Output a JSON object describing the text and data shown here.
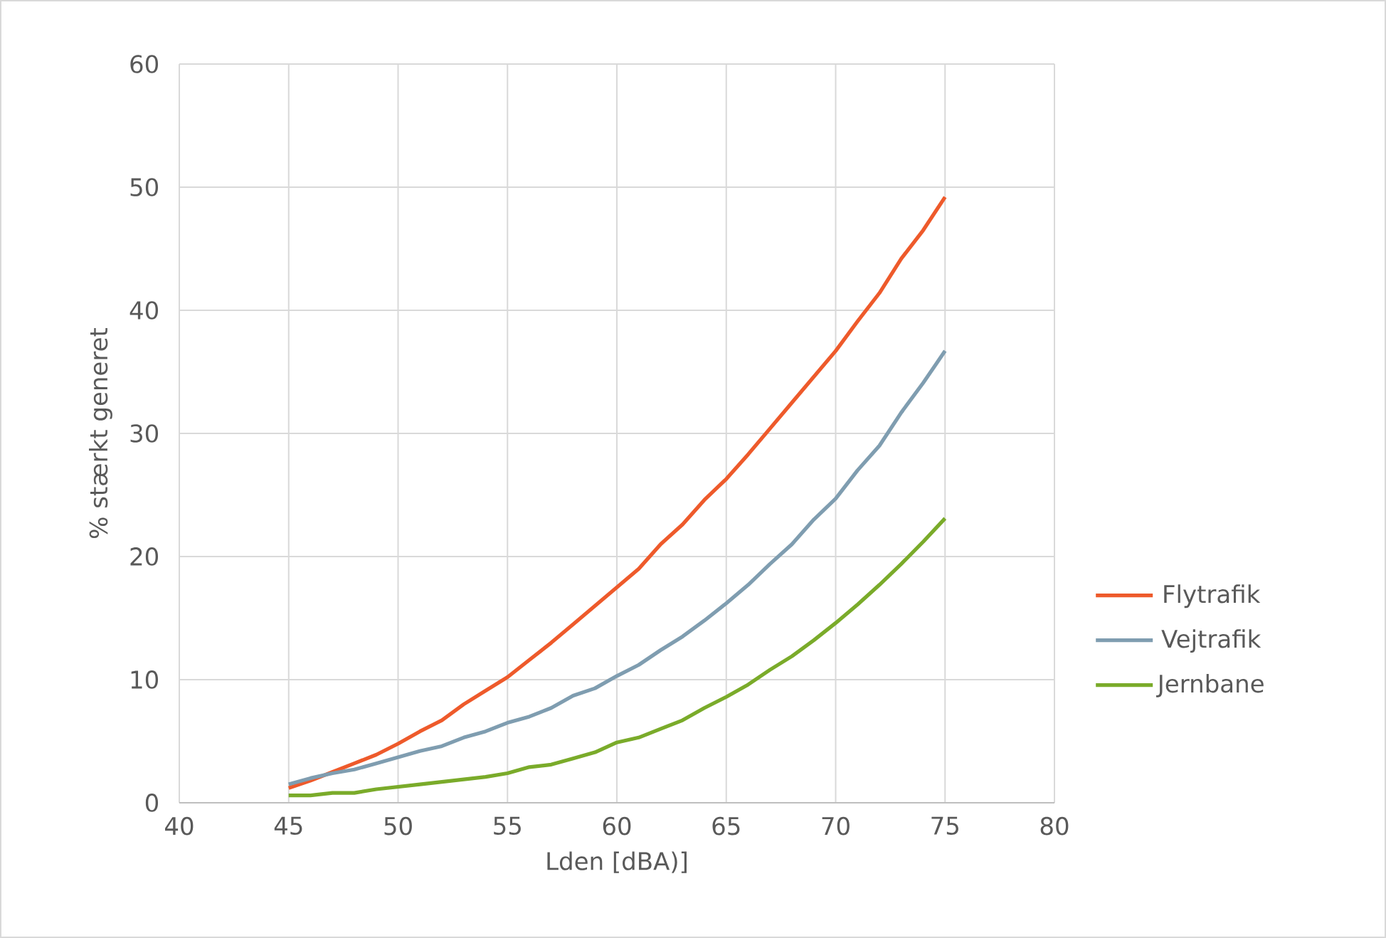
{
  "chart_data": {
    "type": "line",
    "xlabel": "Lden [dBA)]",
    "ylabel": "% stærkt generet",
    "x": [
      45,
      46,
      47,
      48,
      49,
      50,
      51,
      52,
      53,
      54,
      55,
      56,
      57,
      58,
      59,
      60,
      61,
      62,
      63,
      64,
      65,
      66,
      67,
      68,
      69,
      70,
      71,
      72,
      73,
      74,
      75
    ],
    "series": [
      {
        "name": "Flytrafik",
        "color": "#ee5a2b",
        "values": [
          1.2,
          1.8,
          2.5,
          3.2,
          3.9,
          4.8,
          5.8,
          6.7,
          8.0,
          9.1,
          10.2,
          11.6,
          13.0,
          14.5,
          16.0,
          17.5,
          19.0,
          21.0,
          22.6,
          24.6,
          26.3,
          28.3,
          30.4,
          32.5,
          34.6,
          36.7,
          39.1,
          41.4,
          44.2,
          46.5,
          49.2
        ]
      },
      {
        "name": "Vejtrafik",
        "color": "#7f9db0",
        "values": [
          1.5,
          2.0,
          2.4,
          2.7,
          3.2,
          3.7,
          4.2,
          4.6,
          5.3,
          5.8,
          6.5,
          7.0,
          7.7,
          8.7,
          9.3,
          10.3,
          11.2,
          12.4,
          13.5,
          14.8,
          16.2,
          17.7,
          19.4,
          21.0,
          23.0,
          24.7,
          27.0,
          29.0,
          31.7,
          34.1,
          36.7
        ]
      },
      {
        "name": "Jernbane",
        "color": "#7aab2a",
        "values": [
          0.6,
          0.6,
          0.8,
          0.8,
          1.1,
          1.3,
          1.5,
          1.7,
          1.9,
          2.1,
          2.4,
          2.9,
          3.1,
          3.6,
          4.1,
          4.9,
          5.3,
          6.0,
          6.7,
          7.7,
          8.6,
          9.6,
          10.8,
          11.9,
          13.2,
          14.6,
          16.1,
          17.7,
          19.4,
          21.2,
          23.1
        ]
      }
    ],
    "xlim": [
      40,
      80
    ],
    "xticks": [
      40,
      45,
      50,
      55,
      60,
      65,
      70,
      75,
      80
    ],
    "ylim": [
      0,
      60
    ],
    "yticks": [
      0,
      10,
      20,
      30,
      40,
      50,
      60
    ],
    "grid": true,
    "legend": "right",
    "marker": "none",
    "line_style": "solid"
  }
}
